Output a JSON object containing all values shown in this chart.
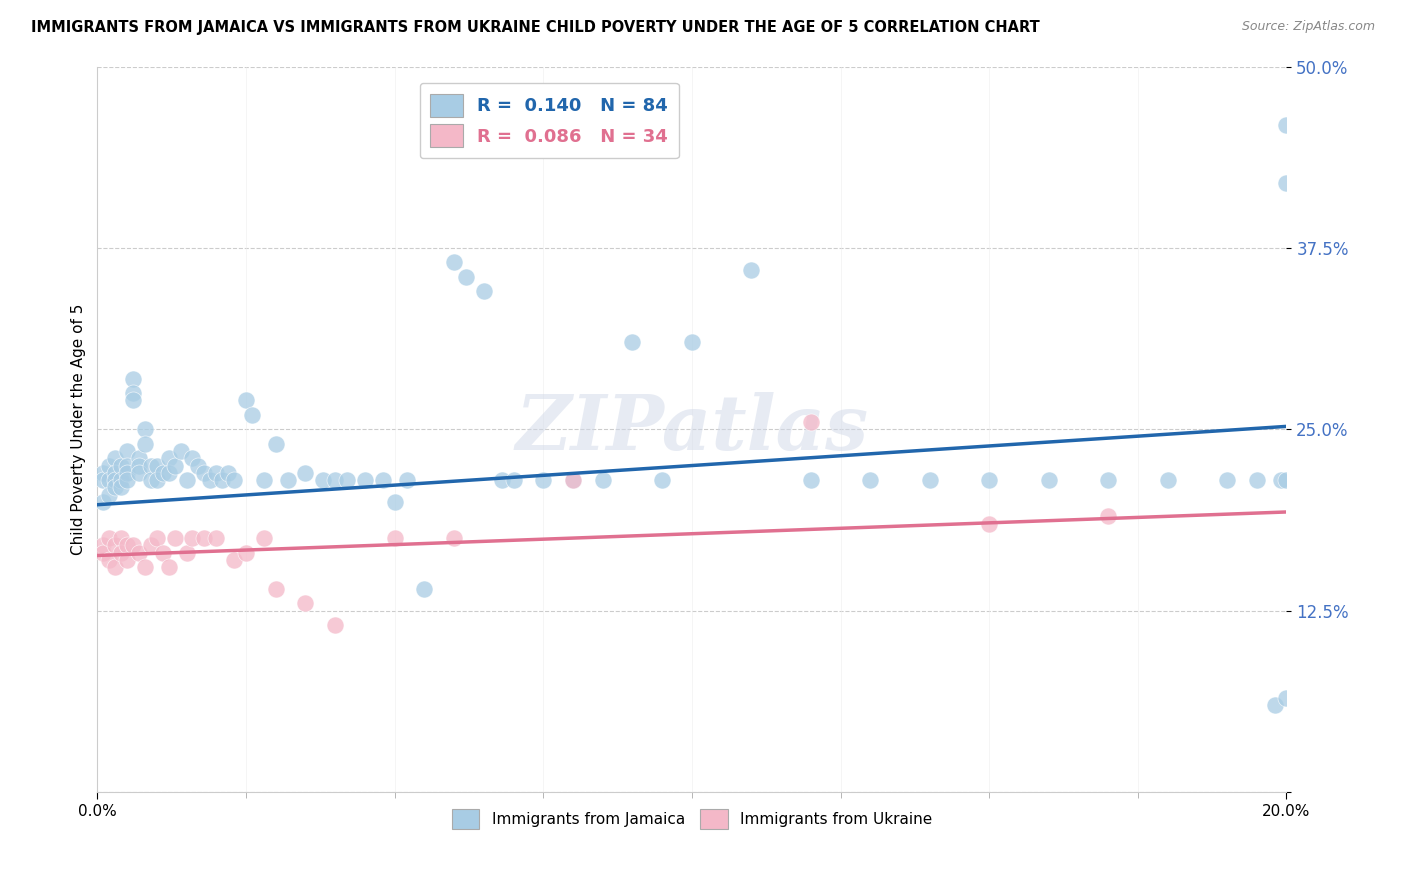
{
  "title": "IMMIGRANTS FROM JAMAICA VS IMMIGRANTS FROM UKRAINE CHILD POVERTY UNDER THE AGE OF 5 CORRELATION CHART",
  "source": "Source: ZipAtlas.com",
  "ylabel": "Child Poverty Under the Age of 5",
  "xtick_left": "0.0%",
  "xtick_right": "20.0%",
  "xlim": [
    0.0,
    0.2
  ],
  "ylim": [
    0.0,
    0.5
  ],
  "yticks": [
    0.0,
    0.125,
    0.25,
    0.375,
    0.5
  ],
  "ytick_labels": [
    "",
    "12.5%",
    "25.0%",
    "37.5%",
    "50.0%"
  ],
  "jamaica_color": "#a8cce4",
  "ukraine_color": "#f4b8c8",
  "jamaica_line_color": "#2166ac",
  "ukraine_line_color": "#e07090",
  "background_color": "#ffffff",
  "watermark": "ZIPatlas",
  "jamaica_R": 0.14,
  "jamaica_N": 84,
  "ukraine_R": 0.086,
  "ukraine_N": 34,
  "jamaica_trendline": [
    [
      0.0,
      0.198
    ],
    [
      0.2,
      0.252
    ]
  ],
  "ukraine_trendline": [
    [
      0.0,
      0.163
    ],
    [
      0.2,
      0.193
    ]
  ],
  "jamaica_x": [
    0.001,
    0.001,
    0.001,
    0.002,
    0.002,
    0.002,
    0.003,
    0.003,
    0.003,
    0.003,
    0.004,
    0.004,
    0.004,
    0.005,
    0.005,
    0.005,
    0.005,
    0.006,
    0.006,
    0.006,
    0.007,
    0.007,
    0.007,
    0.008,
    0.008,
    0.009,
    0.009,
    0.01,
    0.01,
    0.011,
    0.012,
    0.012,
    0.013,
    0.014,
    0.015,
    0.016,
    0.017,
    0.018,
    0.019,
    0.02,
    0.021,
    0.022,
    0.023,
    0.025,
    0.026,
    0.028,
    0.03,
    0.032,
    0.035,
    0.038,
    0.04,
    0.042,
    0.045,
    0.048,
    0.05,
    0.052,
    0.055,
    0.06,
    0.062,
    0.065,
    0.068,
    0.07,
    0.075,
    0.08,
    0.085,
    0.09,
    0.095,
    0.1,
    0.11,
    0.12,
    0.13,
    0.14,
    0.15,
    0.16,
    0.17,
    0.18,
    0.19,
    0.195,
    0.198,
    0.199,
    0.2,
    0.2,
    0.2,
    0.2
  ],
  "jamaica_y": [
    0.22,
    0.215,
    0.2,
    0.225,
    0.215,
    0.205,
    0.23,
    0.22,
    0.215,
    0.21,
    0.225,
    0.215,
    0.21,
    0.235,
    0.225,
    0.22,
    0.215,
    0.285,
    0.275,
    0.27,
    0.23,
    0.225,
    0.22,
    0.25,
    0.24,
    0.225,
    0.215,
    0.225,
    0.215,
    0.22,
    0.23,
    0.22,
    0.225,
    0.235,
    0.215,
    0.23,
    0.225,
    0.22,
    0.215,
    0.22,
    0.215,
    0.22,
    0.215,
    0.27,
    0.26,
    0.215,
    0.24,
    0.215,
    0.22,
    0.215,
    0.215,
    0.215,
    0.215,
    0.215,
    0.2,
    0.215,
    0.14,
    0.365,
    0.355,
    0.345,
    0.215,
    0.215,
    0.215,
    0.215,
    0.215,
    0.31,
    0.215,
    0.31,
    0.36,
    0.215,
    0.215,
    0.215,
    0.215,
    0.215,
    0.215,
    0.215,
    0.215,
    0.215,
    0.06,
    0.215,
    0.215,
    0.42,
    0.46,
    0.065
  ],
  "ukraine_x": [
    0.001,
    0.001,
    0.002,
    0.002,
    0.003,
    0.003,
    0.004,
    0.004,
    0.005,
    0.005,
    0.006,
    0.007,
    0.008,
    0.009,
    0.01,
    0.011,
    0.012,
    0.013,
    0.015,
    0.016,
    0.018,
    0.02,
    0.023,
    0.025,
    0.028,
    0.03,
    0.035,
    0.04,
    0.05,
    0.06,
    0.08,
    0.12,
    0.15,
    0.17
  ],
  "ukraine_y": [
    0.17,
    0.165,
    0.175,
    0.16,
    0.17,
    0.155,
    0.175,
    0.165,
    0.17,
    0.16,
    0.17,
    0.165,
    0.155,
    0.17,
    0.175,
    0.165,
    0.155,
    0.175,
    0.165,
    0.175,
    0.175,
    0.175,
    0.16,
    0.165,
    0.175,
    0.14,
    0.13,
    0.115,
    0.175,
    0.175,
    0.215,
    0.255,
    0.185,
    0.19
  ]
}
